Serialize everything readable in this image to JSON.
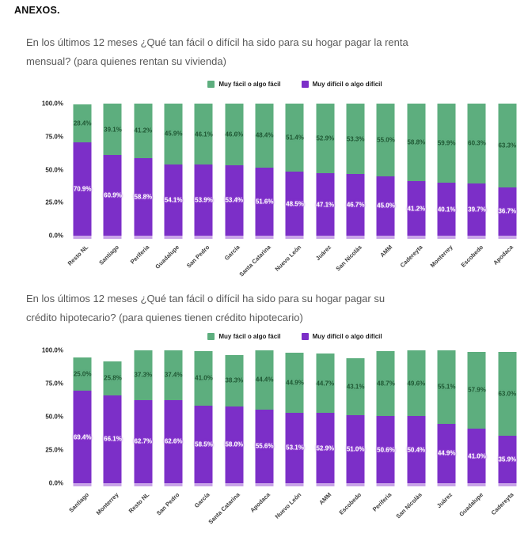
{
  "header": {
    "title": "ANEXOS."
  },
  "colors": {
    "facil": "#5dae7e",
    "dificil": "#7c2fc8",
    "facil_label_text": "#1c5631",
    "dificil_label_text": "#ffffff",
    "bar_cap": "#c9a4e8",
    "title_text": "#595959"
  },
  "chart_data": [
    {
      "type": "bar",
      "stacked": true,
      "title": "En los últimos 12 meses ¿Qué tan fácil o difícil ha sido para su hogar pagar la renta mensual? (para quienes rentan su vivienda)",
      "title_lines": [
        "En los últimos 12 meses ¿Qué tan fácil o difícil ha sido para su hogar pagar la renta",
        "mensual? (para quienes rentan su vivienda)"
      ],
      "legend_position": "top",
      "grid": false,
      "ylim": [
        0,
        100
      ],
      "y_ticks": [
        "100.0%",
        "75.0%",
        "50.0%",
        "25.0%",
        "0.0%"
      ],
      "categories": [
        "Resto NL",
        "Santiago",
        "Periferia",
        "Guadalupe",
        "San Pedro",
        "García",
        "Santa Catarina",
        "Nuevo León",
        "Juárez",
        "San Nicolás",
        "AMM",
        "Cadereyta",
        "Monterrey",
        "Escobedo",
        "Apodaca"
      ],
      "series": [
        {
          "name": "Muy fácil o algo fácil",
          "color": "#5dae7e",
          "values": [
            28.4,
            39.1,
            41.2,
            45.9,
            46.1,
            46.6,
            48.4,
            51.4,
            52.9,
            53.3,
            55.0,
            58.8,
            59.9,
            60.3,
            63.3
          ]
        },
        {
          "name": "Muy difícil o algo difícil",
          "color": "#7c2fc8",
          "values": [
            70.9,
            60.9,
            58.8,
            54.1,
            53.9,
            53.4,
            51.6,
            48.5,
            47.1,
            46.7,
            45.0,
            41.2,
            40.1,
            39.7,
            36.7
          ]
        }
      ]
    },
    {
      "type": "bar",
      "stacked": true,
      "title": "En los últimos 12 meses ¿Qué tan fácil o difícil ha sido para su hogar pagar su crédito hipotecario? (para quienes tienen crédito hipotecario)",
      "title_lines": [
        "En los últimos 12 meses ¿Qué tan fácil o difícil ha sido para su hogar pagar su",
        "crédito hipotecario? (para quienes tienen crédito hipotecario)"
      ],
      "legend_position": "top",
      "grid": false,
      "ylim": [
        0,
        100
      ],
      "y_ticks": [
        "100.0%",
        "75.0%",
        "50.0%",
        "25.0%",
        "0.0%"
      ],
      "categories": [
        "Santiago",
        "Monterrey",
        "Resto NL",
        "San Pedro",
        "García",
        "Santa Catarina",
        "Apodaca",
        "Nuevo León",
        "AMM",
        "Escobedo",
        "Periferia",
        "San Nicolás",
        "Juárez",
        "Guadalupe",
        "Cadereyta"
      ],
      "series": [
        {
          "name": "Muy fácil o algo fácil",
          "color": "#5dae7e",
          "values": [
            25.0,
            25.8,
            37.3,
            37.4,
            41.0,
            38.3,
            44.4,
            44.9,
            44.7,
            43.1,
            48.7,
            49.6,
            55.1,
            57.9,
            63.0
          ]
        },
        {
          "name": "Muy difícil o algo difícil",
          "color": "#7c2fc8",
          "values": [
            69.4,
            66.1,
            62.7,
            62.6,
            58.5,
            58.0,
            55.6,
            53.1,
            52.9,
            51.0,
            50.6,
            50.4,
            44.9,
            41.0,
            35.9
          ]
        }
      ]
    }
  ]
}
